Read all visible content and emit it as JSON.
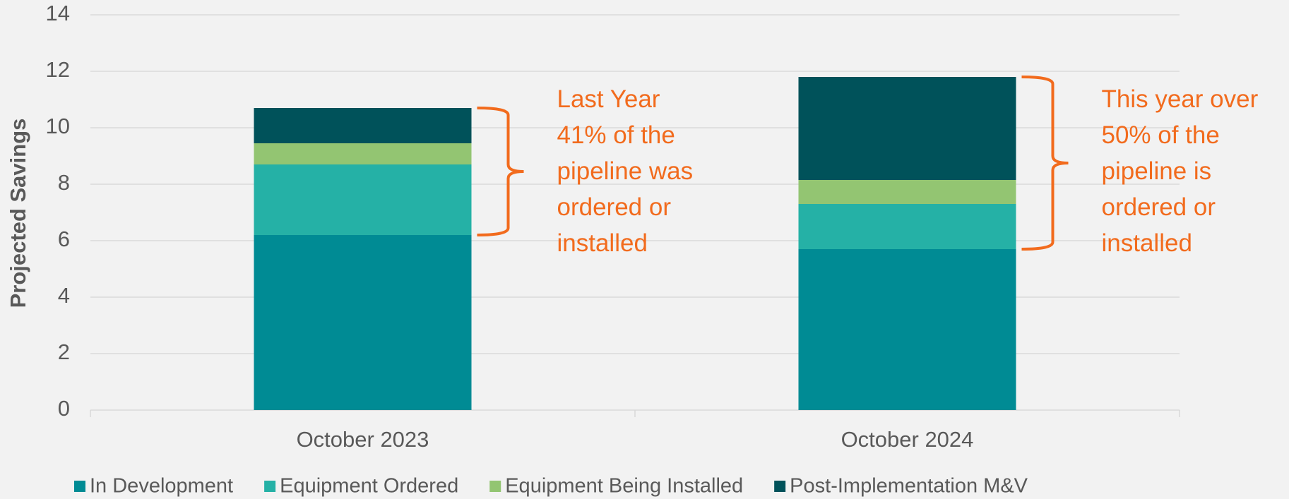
{
  "chart_data": {
    "type": "bar",
    "stacked": true,
    "ylabel": "Projected Savings",
    "categories": [
      "October 2023",
      "October 2024"
    ],
    "series": [
      {
        "name": "In Development",
        "color": "#008b94",
        "values": [
          6.2,
          5.7
        ]
      },
      {
        "name": "Equipment Ordered",
        "color": "#25b1a6",
        "values": [
          2.5,
          1.6
        ]
      },
      {
        "name": "Equipment Being Installed",
        "color": "#93c572",
        "values": [
          0.75,
          0.85
        ]
      },
      {
        "name": "Post-Implementation M&V",
        "color": "#00525a",
        "values": [
          1.25,
          3.65
        ]
      }
    ],
    "ylim": [
      0,
      14
    ],
    "yticks": [
      0,
      2,
      4,
      6,
      8,
      10,
      12,
      14
    ],
    "grid": true,
    "legend": "bottom",
    "annotations": [
      {
        "lines": [
          "Last Year",
          "41% of the",
          "pipeline was",
          "ordered or",
          "installed"
        ]
      },
      {
        "lines": [
          "This year over",
          "50% of the",
          "pipeline is",
          "ordered or",
          "installed"
        ]
      }
    ]
  }
}
